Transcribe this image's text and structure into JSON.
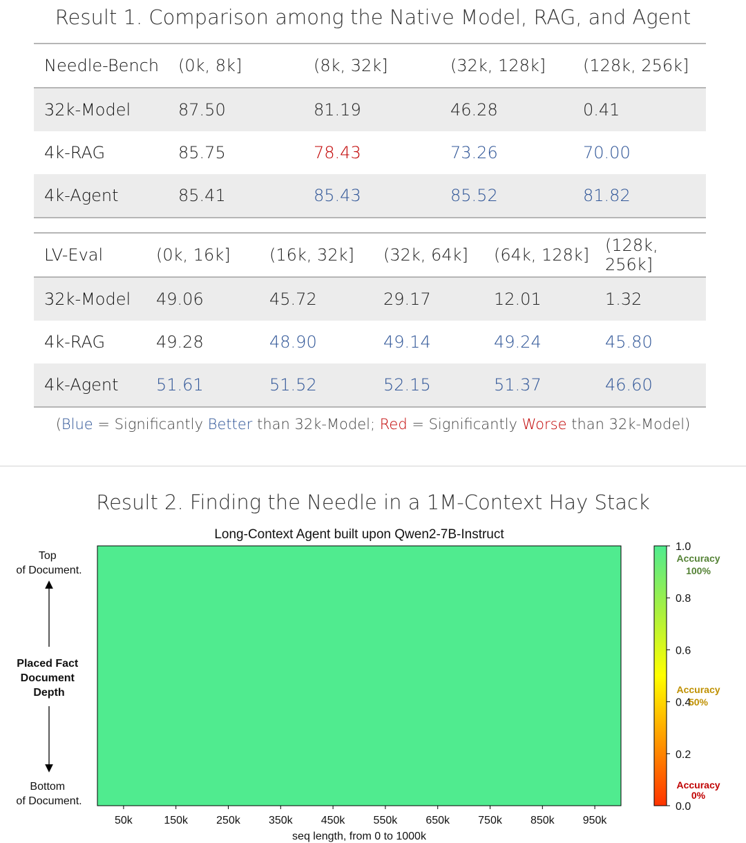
{
  "result1": {
    "title": "Result 1. Comparison among the Native Model, RAG, and Agent",
    "needle_bench": {
      "headers": [
        "Needle-Bench",
        "(0k, 8k]",
        "(8k, 32k]",
        "(32k, 128k]",
        "(128k, 256k]"
      ],
      "rows": [
        {
          "label": "32k-Model",
          "cells": [
            "87.50",
            "81.19",
            "46.28",
            "0.41"
          ],
          "flags": [
            "",
            "",
            "",
            ""
          ]
        },
        {
          "label": "4k-RAG",
          "cells": [
            "85.75",
            "78.43",
            "73.26",
            "70.00"
          ],
          "flags": [
            "",
            "red",
            "blue",
            "blue"
          ]
        },
        {
          "label": "4k-Agent",
          "cells": [
            "85.41",
            "85.43",
            "85.52",
            "81.82"
          ],
          "flags": [
            "",
            "blue",
            "blue",
            "blue"
          ]
        }
      ]
    },
    "lv_eval": {
      "headers": [
        "LV-Eval",
        "(0k, 16k]",
        "(16k, 32k]",
        "(32k, 64k]",
        "(64k, 128k]",
        "(128k, 256k]"
      ],
      "rows": [
        {
          "label": "32k-Model",
          "cells": [
            "49.06",
            "45.72",
            "29.17",
            "12.01",
            "1.32"
          ],
          "flags": [
            "",
            "",
            "",
            "",
            ""
          ]
        },
        {
          "label": "4k-RAG",
          "cells": [
            "49.28",
            "48.90",
            "49.14",
            "49.24",
            "45.80"
          ],
          "flags": [
            "",
            "blue",
            "blue",
            "blue",
            "blue"
          ]
        },
        {
          "label": "4k-Agent",
          "cells": [
            "51.61",
            "51.52",
            "52.15",
            "51.37",
            "46.60"
          ],
          "flags": [
            "blue",
            "blue",
            "blue",
            "blue",
            "blue"
          ]
        }
      ]
    },
    "note": {
      "open": "(",
      "blue_word": "Blue",
      "eq1": " = Significantly ",
      "better": "Better",
      "mid": " than 32k-Model; ",
      "red_word": "Red",
      "eq2": " = Significantly ",
      "worse": "Worse",
      "end": " than 32k-Model)"
    },
    "colors": {
      "blue": "#2f5597",
      "red": "#c00000",
      "row_shade": "#ececec"
    }
  },
  "result2": {
    "title": "Result 2. Finding the Needle in a 1M-Context Hay Stack"
  },
  "chart_data": {
    "type": "heatmap",
    "title": "Long-Context Agent built upon Qwen2-7B-Instruct",
    "xlabel": "seq length, from 0 to 1000k",
    "x_ticks": [
      "50k",
      "150k",
      "250k",
      "350k",
      "450k",
      "550k",
      "650k",
      "750k",
      "850k",
      "950k"
    ],
    "x_range": [
      0,
      1000
    ],
    "ylabel": "Placed Fact Document Depth",
    "y_top_label": "Top of Document.",
    "y_bottom_label": "Bottom of Document.",
    "value": 1.0,
    "fill_color": "#50eb8f",
    "colorbar": {
      "range": [
        0.0,
        1.0
      ],
      "ticks": [
        "1.0",
        "0.8",
        "0.6",
        "0.4",
        "0.2",
        "0.0"
      ],
      "tick_values": [
        1.0,
        0.8,
        0.6,
        0.4,
        0.2,
        0.0
      ],
      "stops": [
        {
          "v": 0.0,
          "color": "#ff3300"
        },
        {
          "v": 0.25,
          "color": "#ff9900"
        },
        {
          "v": 0.5,
          "color": "#ffff00"
        },
        {
          "v": 0.75,
          "color": "#a8f040"
        },
        {
          "v": 1.0,
          "color": "#50eb8f"
        }
      ],
      "annotations": [
        {
          "at": 1.0,
          "line1": "Accuracy",
          "line2": "100%",
          "color": "#548235"
        },
        {
          "at": 0.5,
          "line1": "Accuracy",
          "line2": "50%",
          "color": "#bf9000"
        },
        {
          "at": 0.0,
          "line1": "Accuracy",
          "line2": "0%",
          "color": "#c00000"
        }
      ]
    }
  }
}
